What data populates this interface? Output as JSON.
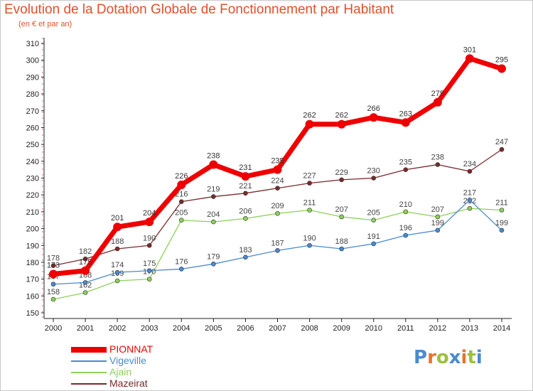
{
  "title": "Evolution de la Dotation Globale de Fonctionnement par Habitant",
  "subtitle": "(en € et par an)",
  "brand": {
    "text": "Proxiti",
    "colors": [
      "#4a8ad0",
      "#e8732a",
      "#9ac23c",
      "#4a8ad0",
      "#e8732a",
      "#9ac23c",
      "#4a8ad0"
    ]
  },
  "chart_data": {
    "type": "line",
    "x": [
      2000,
      2001,
      2002,
      2003,
      2004,
      2005,
      2006,
      2007,
      2008,
      2009,
      2010,
      2011,
      2012,
      2013,
      2014
    ],
    "ylim": [
      150,
      310
    ],
    "yticks": [
      150,
      160,
      170,
      180,
      190,
      200,
      210,
      220,
      230,
      240,
      250,
      260,
      270,
      280,
      290,
      300,
      310
    ],
    "grid": false,
    "legend_position": "bottom-left",
    "series": [
      {
        "name": "Mazeirat",
        "color": "#7a2a2a",
        "values": [
          178,
          182,
          188,
          190,
          216,
          219,
          221,
          224,
          227,
          229,
          230,
          235,
          238,
          234,
          247
        ]
      },
      {
        "name": "Ajain",
        "color": "#8ed05a",
        "values": [
          158,
          162,
          169,
          170,
          205,
          204,
          206,
          209,
          211,
          207,
          205,
          210,
          207,
          212,
          211
        ]
      },
      {
        "name": "Vigeville",
        "color": "#4a8ad0",
        "values": [
          167,
          168,
          174,
          175,
          176,
          179,
          183,
          187,
          190,
          188,
          191,
          196,
          199,
          217,
          199
        ]
      },
      {
        "name": "PIONNAT",
        "color": "#ee0000",
        "values": [
          173,
          175,
          201,
          204,
          226,
          238,
          231,
          235,
          262,
          262,
          266,
          263,
          275,
          301,
          295
        ]
      }
    ]
  }
}
